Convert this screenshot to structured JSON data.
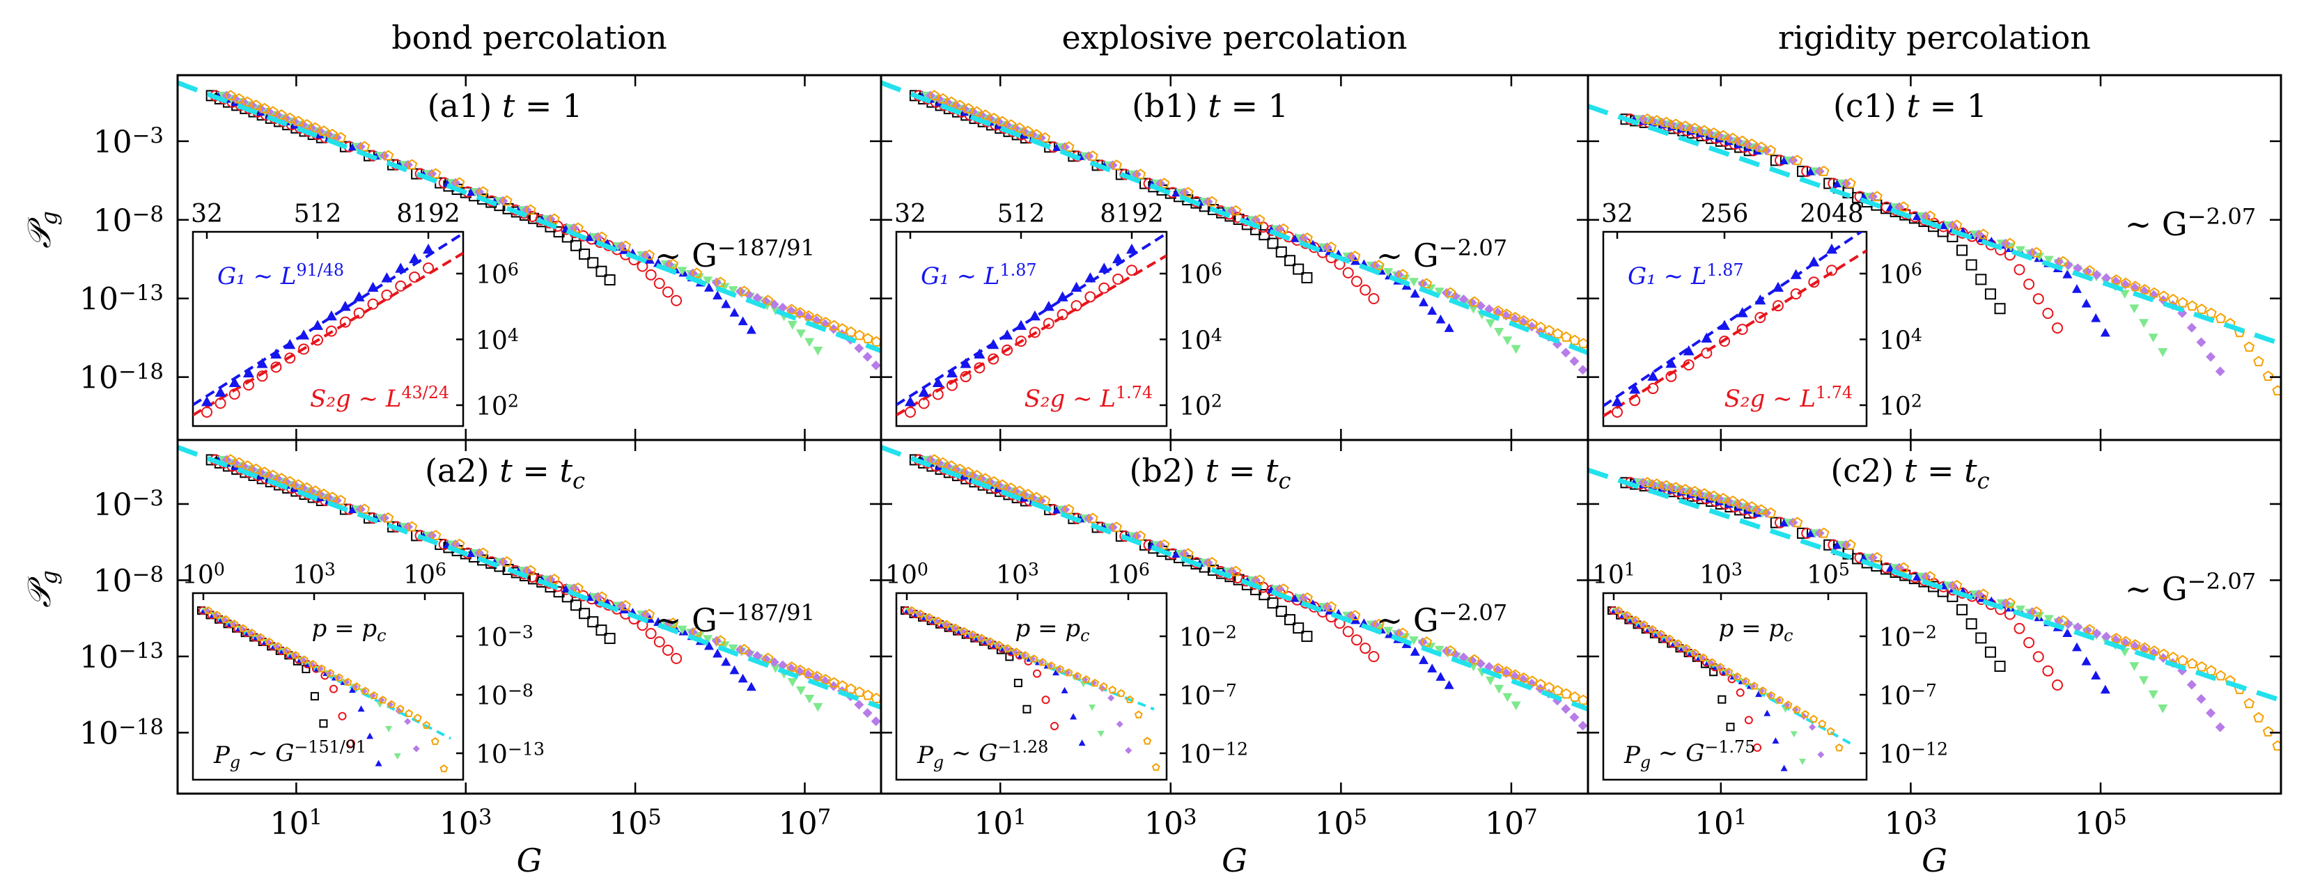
{
  "chart_data": {
    "type": "scatter",
    "column_titles": [
      "bond percolation",
      "explosive percolation",
      "rigidity percolation"
    ],
    "xlabel": "G",
    "ylabel": "𝒫_g",
    "y_ticks": [
      {
        "exp": -3
      },
      {
        "exp": -8
      },
      {
        "exp": -13
      },
      {
        "exp": -18
      }
    ],
    "y_range_log10": [
      -22,
      1.2
    ],
    "series_colors": [
      "#000000",
      "#e8141b",
      "#1515ee",
      "#7ee88c",
      "#b77ce8",
      "#f5a000"
    ],
    "series_markers": [
      "square",
      "circle",
      "triangle-up",
      "triangle-down",
      "diamond",
      "pentagon"
    ],
    "fit_color": "#22e1ec",
    "panels": [
      {
        "id": "a1",
        "col": 0,
        "row": 0,
        "label": "(a1) ",
        "t_value": "1",
        "x_range_log10": [
          -0.4,
          7.9
        ],
        "x_ticks": [
          1,
          3,
          5,
          7
        ],
        "slope": -2.055,
        "intercept": -0.1,
        "fit_text": "∼ G",
        "fit_exp": "−187/91",
        "cutoff_log10": [
          4.2,
          5.0,
          5.8,
          6.6,
          7.35,
          8.1
        ],
        "inset": {
          "type": "size-scaling",
          "top_ticks": [
            "32",
            "512",
            "8192"
          ],
          "right_ticks": [
            {
              "exp": 6
            },
            {
              "exp": 4
            },
            {
              "exp": 2
            }
          ],
          "L": [
            32,
            45,
            64,
            91,
            128,
            181,
            256,
            362,
            512,
            724,
            1024,
            1448,
            2048,
            2896,
            4096,
            5793,
            8192
          ],
          "G1_exponent": 1.896,
          "S2g_exponent": 1.792,
          "G1_text": "G₁ ∼ L",
          "G1_exp": "91/48",
          "S2g_text": "S₂g ∼ L",
          "S2g_exp": "43/24"
        }
      },
      {
        "id": "b1",
        "col": 1,
        "row": 0,
        "label": "(b1) ",
        "t_value": "1",
        "x_range_log10": [
          -0.4,
          7.9
        ],
        "x_ticks": [
          1,
          3,
          5,
          7
        ],
        "slope": -2.07,
        "intercept": -0.1,
        "fit_text": "∼ G",
        "fit_exp": "−2.07",
        "cutoff_log10": [
          4.1,
          4.9,
          5.7,
          6.5,
          7.3,
          8.05
        ],
        "inset": {
          "type": "size-scaling",
          "top_ticks": [
            "32",
            "512",
            "8192"
          ],
          "right_ticks": [
            {
              "exp": 6
            },
            {
              "exp": 4
            },
            {
              "exp": 2
            }
          ],
          "L": [
            32,
            45,
            64,
            91,
            128,
            181,
            256,
            362,
            512,
            724,
            1024,
            1448,
            2048,
            2896,
            4096,
            5793,
            8192
          ],
          "G1_exponent": 1.87,
          "S2g_exponent": 1.74,
          "G1_text": "G₁ ∼ L",
          "G1_exp": "1.87",
          "S2g_text": "S₂g ∼ L",
          "S2g_exp": "1.74"
        }
      },
      {
        "id": "c1",
        "col": 2,
        "row": 0,
        "label": "(c1) ",
        "t_value": "1",
        "x_range_log10": [
          -0.4,
          6.9
        ],
        "x_ticks": [
          1,
          3,
          5
        ],
        "slope": -2.07,
        "intercept": -1.6,
        "fit_text": "∼ G",
        "fit_exp": "−2.07",
        "cutoff_log10": [
          3.45,
          4.0,
          4.55,
          5.1,
          5.65,
          6.2
        ],
        "inset": {
          "type": "size-scaling",
          "top_ticks": [
            "32",
            "256",
            "2048"
          ],
          "right_ticks": [
            {
              "exp": 6
            },
            {
              "exp": 4
            },
            {
              "exp": 2
            }
          ],
          "L": [
            32,
            45,
            64,
            91,
            128,
            181,
            256,
            362,
            512,
            724,
            1024,
            1448,
            2048
          ],
          "G1_exponent": 1.87,
          "S2g_exponent": 1.74,
          "G1_text": "G₁ ∼ L",
          "G1_exp": "1.87",
          "S2g_text": "S₂g ∼ L",
          "S2g_exp": "1.74"
        }
      },
      {
        "id": "a2",
        "col": 0,
        "row": 1,
        "label": "(a2) ",
        "t_value": "t",
        "x_range_log10": [
          -0.4,
          7.9
        ],
        "x_ticks": [
          1,
          3,
          5,
          7
        ],
        "slope": -2.055,
        "intercept": -0.1,
        "fit_text": "∼ G",
        "fit_exp": "−187/91",
        "cutoff_log10": [
          4.2,
          5.0,
          5.8,
          6.6,
          7.35,
          8.1
        ],
        "inset": {
          "type": "distribution",
          "p_text": "p = p",
          "p_sub": "c",
          "top_ticks": [
            {
              "exp": 0
            },
            {
              "exp": 3
            },
            {
              "exp": 6
            }
          ],
          "right_ticks": [
            {
              "exp": -3
            },
            {
              "exp": -8
            },
            {
              "exp": -13
            }
          ],
          "exponent": 1.659,
          "law_text": "P",
          "law_sub": "g",
          "law_mid": " ∼ G",
          "law_exp": "−151/91"
        }
      },
      {
        "id": "b2",
        "col": 1,
        "row": 1,
        "label": "(b2) ",
        "t_value": "t",
        "x_range_log10": [
          -0.4,
          7.9
        ],
        "x_ticks": [
          1,
          3,
          5,
          7
        ],
        "slope": -2.07,
        "intercept": -0.1,
        "fit_text": "∼ G",
        "fit_exp": "−2.07",
        "cutoff_log10": [
          4.1,
          4.9,
          5.7,
          6.5,
          7.3,
          8.05
        ],
        "inset": {
          "type": "distribution",
          "p_text": "p = p",
          "p_sub": "c",
          "top_ticks": [
            {
              "exp": 0
            },
            {
              "exp": 3
            },
            {
              "exp": 6
            }
          ],
          "right_ticks": [
            {
              "exp": -2
            },
            {
              "exp": -7
            },
            {
              "exp": -12
            }
          ],
          "exponent": 1.28,
          "law_text": "P",
          "law_sub": "g",
          "law_mid": " ∼ G",
          "law_exp": "−1.28"
        }
      },
      {
        "id": "c2",
        "col": 2,
        "row": 1,
        "label": "(c2) ",
        "t_value": "t",
        "x_range_log10": [
          -0.4,
          6.9
        ],
        "x_ticks": [
          1,
          3,
          5
        ],
        "slope": -2.07,
        "intercept": -1.6,
        "fit_text": "∼ G",
        "fit_exp": "−2.07",
        "cutoff_log10": [
          3.45,
          4.0,
          4.55,
          5.1,
          5.65,
          6.2
        ],
        "inset": {
          "type": "distribution",
          "p_text": "p = p",
          "p_sub": "c",
          "top_ticks": [
            {
              "exp": 1
            },
            {
              "exp": 3
            },
            {
              "exp": 5
            }
          ],
          "right_ticks": [
            {
              "exp": -2
            },
            {
              "exp": -7
            },
            {
              "exp": -12
            }
          ],
          "exponent": 1.75,
          "law_text": "P",
          "law_sub": "g",
          "law_mid": " ∼ G",
          "law_exp": "−1.75"
        }
      }
    ]
  }
}
